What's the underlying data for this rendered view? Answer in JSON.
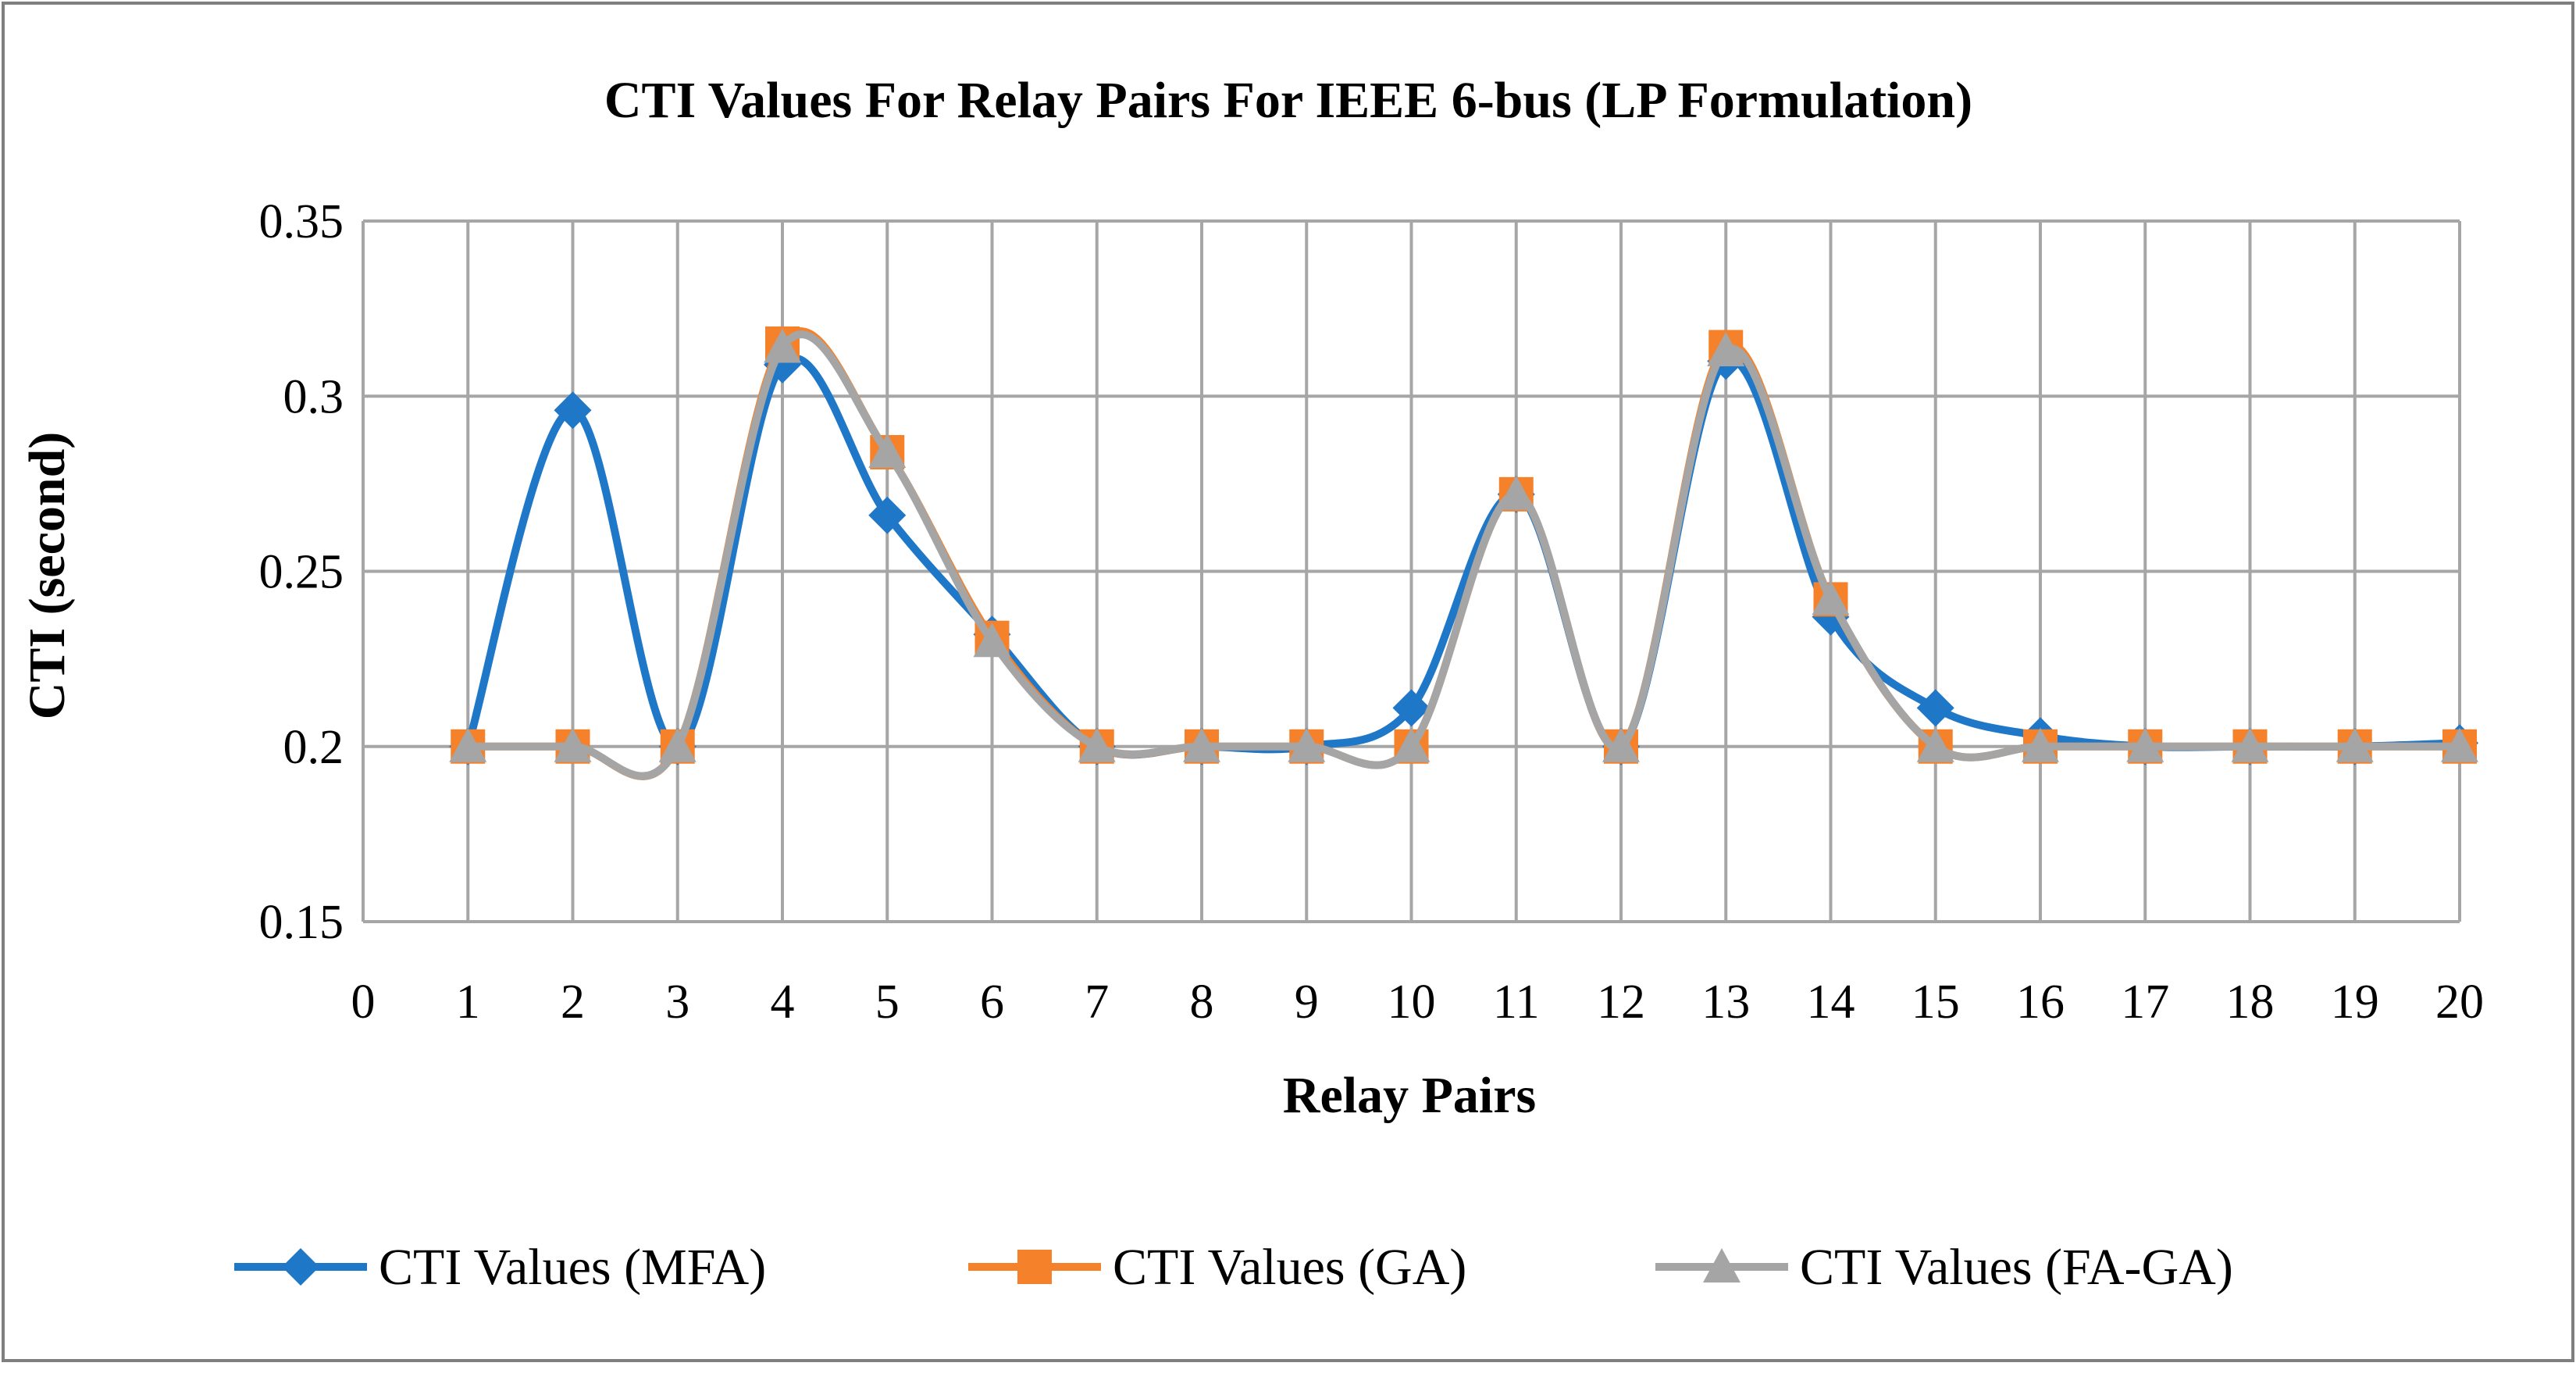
{
  "chart_data": {
    "type": "line",
    "title": "CTI Values For Relay Pairs For IEEE 6-bus (LP Formulation)",
    "xlabel": "Relay Pairs",
    "ylabel": "CTI (second)",
    "xlim": [
      0,
      20
    ],
    "ylim": [
      0.15,
      0.35
    ],
    "x_ticks": [
      "0",
      "1",
      "2",
      "3",
      "4",
      "5",
      "6",
      "7",
      "8",
      "9",
      "10",
      "11",
      "12",
      "13",
      "14",
      "15",
      "16",
      "17",
      "18",
      "19",
      "20"
    ],
    "y_ticks": [
      "0.35",
      "0.3",
      "0.25",
      "0.2",
      "0.15"
    ],
    "y_tick_values": [
      0.35,
      0.3,
      0.25,
      0.2,
      0.15
    ],
    "grid": true,
    "smooth": true,
    "legend_position": "bottom",
    "x": [
      1,
      2,
      3,
      4,
      5,
      6,
      7,
      8,
      9,
      10,
      11,
      12,
      13,
      14,
      15,
      16,
      17,
      18,
      19,
      20
    ],
    "series": [
      {
        "name": "CTI Values (MFA)",
        "color": "#1f77c8",
        "marker": "diamond",
        "values": [
          0.2,
          0.296,
          0.2,
          0.309,
          0.266,
          0.232,
          0.2,
          0.2,
          0.2,
          0.211,
          0.272,
          0.2,
          0.31,
          0.237,
          0.211,
          0.203,
          0.2,
          0.2,
          0.2,
          0.201
        ]
      },
      {
        "name": "CTI Values (GA)",
        "color": "#f5822a",
        "marker": "square",
        "values": [
          0.2,
          0.2,
          0.2,
          0.315,
          0.284,
          0.231,
          0.2,
          0.2,
          0.2,
          0.2,
          0.272,
          0.2,
          0.314,
          0.242,
          0.2,
          0.2,
          0.2,
          0.2,
          0.2,
          0.2
        ]
      },
      {
        "name": "CTI Values (FA-GA)",
        "color": "#a5a5a5",
        "marker": "triangle",
        "values": [
          0.2,
          0.2,
          0.2,
          0.314,
          0.284,
          0.23,
          0.2,
          0.2,
          0.2,
          0.2,
          0.272,
          0.2,
          0.313,
          0.242,
          0.2,
          0.2,
          0.2,
          0.2,
          0.2,
          0.2
        ]
      }
    ]
  }
}
